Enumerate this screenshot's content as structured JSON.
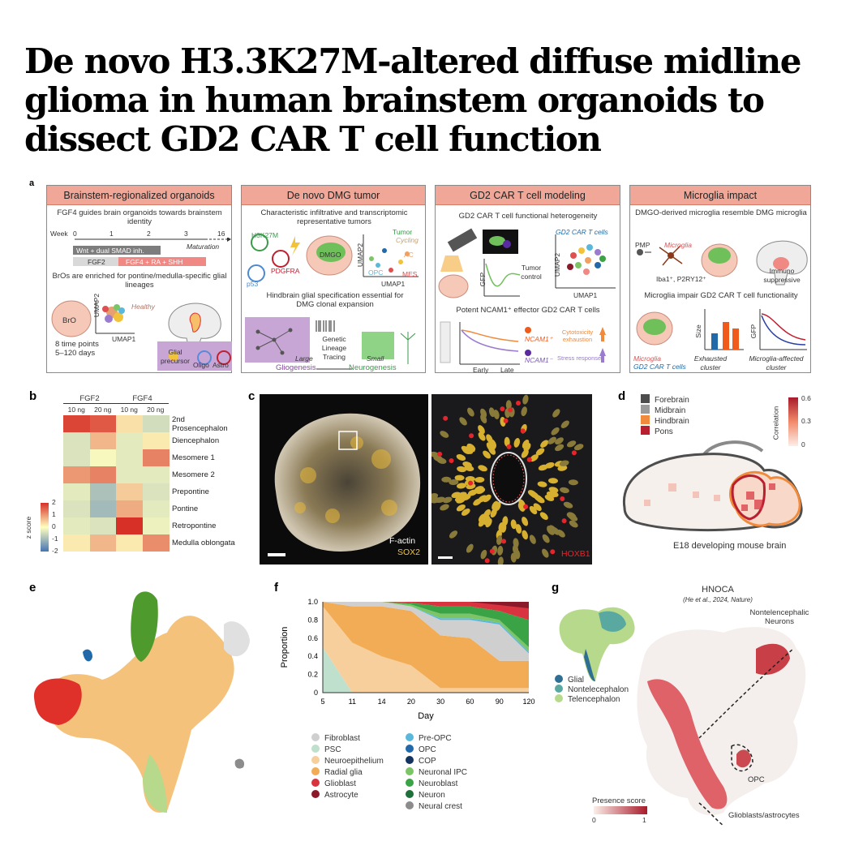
{
  "title": {
    "line1": "De novo H3.3K27M-altered diffuse midline",
    "line2": "glioma in human brainstem organoids to",
    "line3": "dissect GD2 CAR T cell function"
  },
  "panel_labels": [
    "a",
    "b",
    "c",
    "d",
    "e",
    "f",
    "g"
  ],
  "panel_a": {
    "box1": {
      "header": "Brainstem-regionalized organoids",
      "subtitle": "FGF4 guides brain organoids towards brainstem identity",
      "week_label": "Week",
      "weeks": [
        "0",
        "1",
        "2",
        "3",
        "16"
      ],
      "maturation": "Maturation",
      "bar_wnt": "Wnt + dual SMAD inh.",
      "bar_fgf2": "FGF2",
      "bar_fgf4": "FGF4 + RA + SHH",
      "enriched_text": "BrOs are enriched for pontine/medulla-specific glial lineages",
      "bro": "BrO",
      "time_points": "8 time points",
      "days": "5–120 days",
      "umap1": "UMAP1",
      "umap2": "UMAP2",
      "healthy": "Healthy",
      "glial_precursor": "Glial precursor",
      "oligo": "Oligo",
      "astro": "Astro"
    },
    "box2": {
      "header": "De novo DMG tumor",
      "subtitle": "Characteristic infiltrative and transcriptomic representative tumors",
      "h3k27m": "H3K27M",
      "pdgfra": "PDGFRA",
      "p53": "p53",
      "dmgo": "DMGO",
      "tumor": "Tumor",
      "cycling": "Cycling",
      "ac": "AC",
      "opc": "OPC",
      "mes": "MES",
      "umap1": "UMAP1",
      "umap2": "UMAP2",
      "hindbrain": "Hindbrain glial specification essential for DMG clonal expansion",
      "genetic_lineage": "Genetic Lineage Tracing",
      "large": "Large",
      "small": "Small",
      "gliogenesis": "Gliogenesis",
      "neurogenesis": "Neurogenesis"
    },
    "box3": {
      "header": "GD2 CAR T cell modeling",
      "subtitle": "GD2 CAR T cell functional heterogeneity",
      "gd2_car_t_cells": "GD2 CAR T cells",
      "tumor_control": "Tumor control",
      "gfp": "GFP",
      "umap1": "UMAP1",
      "umap2": "UMAP2",
      "potent": "Potent NCAM1⁺ effector GD2 CAR T cells",
      "ncam1_pos": "NCAM1⁺",
      "ncam1_neg": "NCAM1⁻",
      "cytotoxicity": "Cytotoxicity exhaustion",
      "stress": "Stress response",
      "early": "Early",
      "late": "Late"
    },
    "box4": {
      "header": "Microglia impact",
      "subtitle": "DMGO-derived microglia resemble DMG microglia",
      "pmp": "PMP",
      "microglia": "Microglia",
      "markers": "Iba1⁺, P2RY12⁺",
      "immuno": "Immuno suppressive",
      "impair": "Microglia impair GD2 CAR T cell functionality",
      "size": "Size",
      "gfp": "GFP",
      "microglia_label": "Microglia",
      "gd2_label": "GD2 CAR T cells",
      "exhausted": "Exhausted cluster",
      "affected": "Microglia-affected cluster"
    }
  },
  "panel_b": {
    "group_labels": [
      "FGF2",
      "FGF4"
    ],
    "col_labels": [
      "10 ng",
      "20 ng",
      "10 ng",
      "20 ng"
    ],
    "row_labels": [
      "2nd Prosencephalon",
      "Diencephalon",
      "Mesomere 1",
      "Mesomere 2",
      "Prepontine",
      "Pontine",
      "Retropontine",
      "Medulla oblongata"
    ],
    "values": [
      [
        1.8,
        1.6,
        0.3,
        -0.5
      ],
      [
        -0.4,
        0.7,
        -0.3,
        0.2
      ],
      [
        -0.4,
        -0.1,
        -0.3,
        1.2
      ],
      [
        1.0,
        1.2,
        -0.3,
        -0.3
      ],
      [
        -0.3,
        -0.9,
        0.5,
        -0.4
      ],
      [
        -0.4,
        -1.0,
        0.8,
        -0.3
      ],
      [
        -0.3,
        -0.4,
        2.0,
        -0.2
      ],
      [
        0.2,
        0.7,
        0.2,
        1.1
      ]
    ],
    "colorbar_label": "z score",
    "colorbar_ticks": [
      "2",
      "1",
      "0",
      "-1",
      "-2"
    ]
  },
  "panel_c": {
    "left_stain1": "F-actin",
    "left_stain2": "SOX2",
    "right_stain": "HOXB1",
    "left_stain1_color": "#ffffff",
    "left_stain2_color": "#f2c33a",
    "right_stain_color": "#e8242b"
  },
  "panel_d": {
    "legend": [
      {
        "label": "Forebrain",
        "color": "#4d4d4d"
      },
      {
        "label": "Midbrain",
        "color": "#9a9a9a"
      },
      {
        "label": "Hindbrain",
        "color": "#f08a3c"
      },
      {
        "label": "Pons",
        "color": "#b8202f"
      }
    ],
    "colorbar_label": "Correlation",
    "colorbar_ticks": [
      "0.6",
      "0.3",
      "0"
    ],
    "caption": "E18 developing mouse brain"
  },
  "panel_f": {
    "ylabel": "Proportion",
    "xlabel": "Day",
    "legend_col1": [
      {
        "label": "Fibroblast",
        "color": "#cfcfcf"
      },
      {
        "label": "PSC",
        "color": "#bfe0cc"
      },
      {
        "label": "Neuroepithelium",
        "color": "#f6cf9d"
      },
      {
        "label": "Radial glia",
        "color": "#f2ac55"
      },
      {
        "label": "Glioblast",
        "color": "#d8333e"
      },
      {
        "label": "Astrocyte",
        "color": "#8a1a2a"
      }
    ],
    "legend_col2": [
      {
        "label": "Pre-OPC",
        "color": "#5ab8db"
      },
      {
        "label": "OPC",
        "color": "#2169a8"
      },
      {
        "label": "COP",
        "color": "#15335f"
      },
      {
        "label": "Neuronal IPC",
        "color": "#7cc567"
      },
      {
        "label": "Neuroblast",
        "color": "#3aa346"
      },
      {
        "label": "Neuron",
        "color": "#1f6f3a"
      },
      {
        "label": "Neural crest",
        "color": "#8c8c8c"
      }
    ]
  },
  "panel_g": {
    "title": "HNOCA",
    "subtitle": "(He et al., 2024, Nature)",
    "legend": [
      {
        "label": "Glial",
        "color": "#2e6f93"
      },
      {
        "label": "Nontelecephalon",
        "color": "#5aa9a0"
      },
      {
        "label": "Telencephalon",
        "color": "#b7d98c"
      }
    ],
    "nontel_label": "Nontelencephalic Neurons",
    "opc_label": "OPC",
    "glio_label": "Glioblasts/astrocytes",
    "presence_label": "Presence score",
    "presence_min": "0",
    "presence_max": "1"
  },
  "chart_data": {
    "type": "area",
    "x": [
      "5",
      "11",
      "14",
      "20",
      "30",
      "60",
      "90",
      "120"
    ],
    "ylim": [
      0,
      1.0
    ],
    "yticks": [
      "0",
      "0.2",
      "0.4",
      "0.6",
      "0.8",
      "1.0"
    ],
    "xlabel": "Day",
    "ylabel": "Proportion",
    "series": [
      {
        "name": "PSC",
        "values": [
          0.5,
          0.0,
          0.0,
          0.0,
          0.0,
          0.0,
          0.0,
          0.0
        ]
      },
      {
        "name": "Neuroepithelium",
        "values": [
          0.45,
          0.55,
          0.4,
          0.3,
          0.05,
          0.05,
          0.05,
          0.05
        ]
      },
      {
        "name": "Radial glia",
        "values": [
          0.05,
          0.4,
          0.55,
          0.6,
          0.58,
          0.55,
          0.3,
          0.3
        ]
      },
      {
        "name": "Fibroblast",
        "values": [
          0.0,
          0.05,
          0.05,
          0.05,
          0.17,
          0.2,
          0.4,
          0.08
        ]
      },
      {
        "name": "Pre-OPC",
        "values": [
          0.0,
          0.0,
          0.0,
          0.0,
          0.02,
          0.02,
          0.02,
          0.02
        ]
      },
      {
        "name": "Neuronal IPC",
        "values": [
          0.0,
          0.0,
          0.0,
          0.02,
          0.05,
          0.05,
          0.03,
          0.05
        ]
      },
      {
        "name": "Neuroblast",
        "values": [
          0.0,
          0.0,
          0.0,
          0.02,
          0.08,
          0.08,
          0.1,
          0.3
        ]
      },
      {
        "name": "Glioblast",
        "values": [
          0.0,
          0.0,
          0.0,
          0.01,
          0.05,
          0.05,
          0.1,
          0.2
        ]
      }
    ]
  }
}
